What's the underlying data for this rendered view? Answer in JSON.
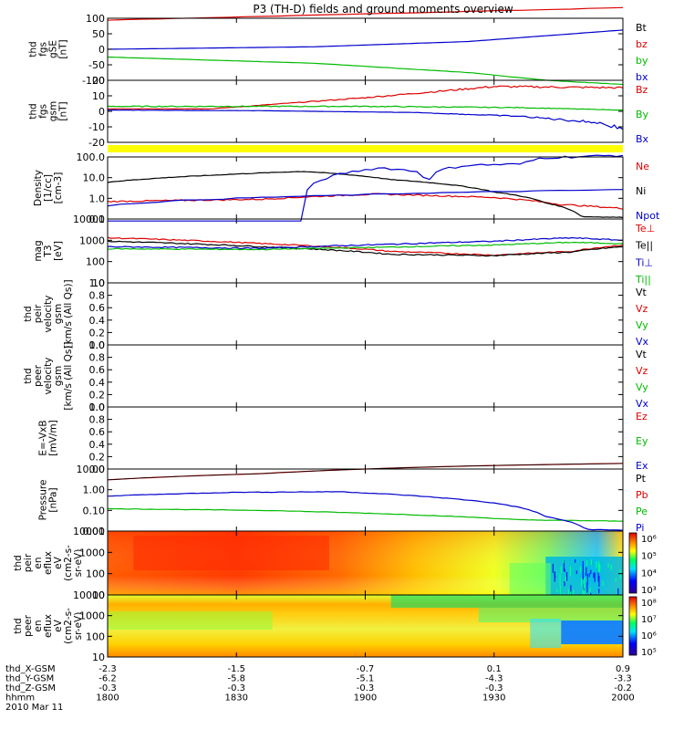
{
  "title": "P3 (TH-D) fields and ground moments overview",
  "panels": [
    {
      "id": "fgs_gse",
      "ylabels": [
        "thd",
        "fgs",
        "gSE",
        "[nT]"
      ],
      "ticks": [
        "100",
        "50",
        "0",
        "-50",
        "-100"
      ],
      "legend": [
        {
          "t": "Bt",
          "c": "#000000"
        },
        {
          "t": "bz",
          "c": "#dd0000"
        },
        {
          "t": "by",
          "c": "#00bb00"
        },
        {
          "t": "bx",
          "c": "#0000cc"
        }
      ]
    },
    {
      "id": "fgs_gsm",
      "ylabels": [
        "thd",
        "fgs",
        "gsm",
        "[nT]"
      ],
      "ticks": [
        "20",
        "10",
        "0",
        "-10",
        "-20"
      ],
      "legend": [
        {
          "t": "Bz",
          "c": "#dd0000"
        },
        {
          "t": "By",
          "c": "#00bb00"
        },
        {
          "t": "Bx",
          "c": "#0000cc"
        }
      ]
    },
    {
      "id": "density",
      "ylabels": [
        "Density",
        "[1/cc]",
        "[cm-3]"
      ],
      "ticks": [
        "100.0",
        "10.0",
        "1.0",
        "0.1"
      ],
      "legend": [
        {
          "t": "Ne",
          "c": "#dd0000"
        },
        {
          "t": "Ni",
          "c": "#000000"
        },
        {
          "t": "Npot",
          "c": "#0000cc"
        }
      ]
    },
    {
      "id": "temp",
      "ylabels": [
        "mag",
        "T3",
        "[eV]"
      ],
      "ticks": [
        "10000",
        "1000",
        "100",
        "10"
      ],
      "legend": [
        {
          "t": "Te⊥",
          "c": "#dd0000"
        },
        {
          "t": "Te||",
          "c": "#000000"
        },
        {
          "t": "Ti⊥",
          "c": "#0000cc"
        },
        {
          "t": "Ti||",
          "c": "#00bb00"
        }
      ]
    },
    {
      "id": "peir_vel",
      "ylabels": [
        "thd",
        "peir",
        "velocity",
        "gsm",
        "[km/s (All Qs)]"
      ],
      "ticks": [
        "1.0",
        "0.8",
        "0.6",
        "0.4",
        "0.2",
        "0.0"
      ],
      "legend": [
        {
          "t": "Vt",
          "c": "#000000"
        },
        {
          "t": "Vz",
          "c": "#dd0000"
        },
        {
          "t": "Vy",
          "c": "#00bb00"
        },
        {
          "t": "Vx",
          "c": "#0000cc"
        }
      ]
    },
    {
      "id": "peer_vel",
      "ylabels": [
        "thd",
        "peer",
        "velocity",
        "gsm",
        "[km/s (All Qs)]"
      ],
      "ticks": [
        "1.0",
        "0.8",
        "0.6",
        "0.4",
        "0.2",
        "0.0"
      ],
      "legend": [
        {
          "t": "Vt",
          "c": "#000000"
        },
        {
          "t": "Vz",
          "c": "#dd0000"
        },
        {
          "t": "Vy",
          "c": "#00bb00"
        },
        {
          "t": "Vx",
          "c": "#0000cc"
        }
      ]
    },
    {
      "id": "efield",
      "ylabels": [
        "E=-VxB",
        "[mV/m]"
      ],
      "ticks": [
        "1.0",
        "0.8",
        "0.6",
        "0.4",
        "0.2",
        "0.0"
      ],
      "legend": [
        {
          "t": "Ez",
          "c": "#dd0000"
        },
        {
          "t": "Ey",
          "c": "#00bb00"
        },
        {
          "t": "Ex",
          "c": "#0000cc"
        }
      ]
    },
    {
      "id": "pressure",
      "ylabels": [
        "Pressure",
        "[nPa]"
      ],
      "ticks": [
        "10.00",
        "1.00",
        "0.10",
        "0.01"
      ],
      "legend": [
        {
          "t": "Pt",
          "c": "#000000"
        },
        {
          "t": "Pb",
          "c": "#dd0000"
        },
        {
          "t": "Pe",
          "c": "#00bb00"
        },
        {
          "t": "Pi",
          "c": "#0000cc"
        }
      ]
    },
    {
      "id": "peir_spec",
      "ylabels": [
        "thd",
        "peir",
        "en",
        "eflux",
        "eV",
        "(cm2-s-",
        "sr-eV)"
      ],
      "ticks": [
        "10000",
        "1000",
        "100",
        "10"
      ],
      "cbar": [
        "10⁶",
        "10⁵",
        "10⁴",
        "10³"
      ]
    },
    {
      "id": "peer_spec",
      "ylabels": [
        "thd",
        "peer",
        "en",
        "eflux",
        "eV",
        "(cm2-s-",
        "sr-eV)"
      ],
      "ticks": [
        "10000",
        "1000",
        "100",
        "10"
      ],
      "cbar": [
        "10⁸",
        "10⁷",
        "10⁶",
        "10⁵"
      ]
    }
  ],
  "xaxis": {
    "rows": [
      {
        "label": "thd_X-GSM",
        "values": [
          "-2.3",
          "-1.5",
          "-0.7",
          "0.1",
          "0.9"
        ]
      },
      {
        "label": "thd_Y-GSM",
        "values": [
          "-6.2",
          "-5.8",
          "-5.1",
          "-4.3",
          "-3.3"
        ]
      },
      {
        "label": "thd_Z-GSM",
        "values": [
          "-0.3",
          "-0.3",
          "-0.3",
          "-0.3",
          "-0.2"
        ]
      },
      {
        "label": "hhmm",
        "values": [
          "1800",
          "1830",
          "1900",
          "1930",
          "2000"
        ]
      }
    ],
    "date": "2010 Mar 11"
  },
  "chart_data": [
    {
      "type": "line",
      "title": "P3 (TH-D) fields and ground moments overview",
      "ylabel": "thd fgs gSE [nT]",
      "ylim": [
        -100,
        100
      ],
      "x": [
        "1800",
        "1830",
        "1900",
        "1930",
        "2000"
      ],
      "series": [
        {
          "name": "Bt",
          "values": [
            null,
            null,
            null,
            null,
            null
          ]
        },
        {
          "name": "bz",
          "values": [
            95,
            null,
            null,
            null,
            null
          ]
        },
        {
          "name": "by",
          "values": [
            -30,
            -45,
            -70,
            -95,
            null
          ]
        },
        {
          "name": "bx",
          "values": [
            0,
            5,
            15,
            30,
            60
          ]
        }
      ]
    },
    {
      "type": "line",
      "ylabel": "thd fgs gsm [nT]",
      "ylim": [
        -25,
        25
      ],
      "x": [
        "1800",
        "1830",
        "1900",
        "1930",
        "2000"
      ],
      "series": [
        {
          "name": "Bz",
          "values": [
            2,
            5,
            12,
            19,
            18
          ]
        },
        {
          "name": "By",
          "values": [
            4,
            4,
            4,
            3,
            1
          ]
        },
        {
          "name": "Bx",
          "values": [
            0,
            0,
            -1,
            -3,
            -12
          ]
        }
      ]
    },
    {
      "type": "line",
      "ylabel": "Density [1/cc]",
      "scale": "log",
      "ylim": [
        0.1,
        100
      ],
      "x": [
        "1800",
        "1830",
        "1850",
        "1900",
        "1930",
        "2000"
      ],
      "series": [
        {
          "name": "Ne",
          "values": [
            0.7,
            0.9,
            1.0,
            1.5,
            1.0,
            0.35
          ]
        },
        {
          "name": "Ni",
          "values": [
            6,
            12,
            20,
            8,
            2,
            0.12
          ]
        },
        {
          "name": "Npot",
          "values": [
            null,
            null,
            null,
            40,
            50,
            null
          ]
        }
      ]
    },
    {
      "type": "line",
      "ylabel": "mag T3 [eV]",
      "scale": "log",
      "ylim": [
        10,
        10000
      ],
      "x": [
        "1800",
        "1830",
        "1900",
        "1930",
        "2000"
      ],
      "series": [
        {
          "name": "Te⊥",
          "values": [
            1300,
            800,
            300,
            220,
            600
          ]
        },
        {
          "name": "Te||",
          "values": [
            900,
            550,
            220,
            200,
            500
          ]
        },
        {
          "name": "Ti⊥",
          "values": [
            500,
            450,
            700,
            900,
            1200
          ]
        },
        {
          "name": "Ti||",
          "values": [
            400,
            380,
            500,
            600,
            900
          ]
        }
      ]
    },
    {
      "type": "line",
      "ylabel": "Pressure [nPa]",
      "scale": "log",
      "ylim": [
        0.01,
        10
      ],
      "x": [
        "1800",
        "1830",
        "1900",
        "1930",
        "2000"
      ],
      "series": [
        {
          "name": "Pt",
          "values": [
            3,
            6,
            12,
            null,
            null
          ]
        },
        {
          "name": "Pb",
          "values": [
            3,
            6,
            12,
            null,
            null
          ]
        },
        {
          "name": "Pe",
          "values": [
            0.12,
            0.1,
            0.07,
            0.035,
            0.03
          ]
        },
        {
          "name": "Pi",
          "values": [
            0.5,
            0.8,
            0.7,
            0.2,
            0.012
          ]
        }
      ]
    },
    {
      "type": "heatmap",
      "ylabel": "thd peir en eflux",
      "scale": "log",
      "ylim": [
        10,
        10000
      ],
      "x": [
        "1800",
        "1830",
        "1900",
        "1930",
        "2000"
      ],
      "colorbar": [
        "10³",
        "10⁴",
        "10⁵",
        "10⁶"
      ]
    },
    {
      "type": "heatmap",
      "ylabel": "thd peer en eflux",
      "scale": "log",
      "ylim": [
        10,
        10000
      ],
      "x": [
        "1800",
        "1830",
        "1900",
        "1930",
        "2000"
      ],
      "colorbar": [
        "10⁵",
        "10⁶",
        "10⁷",
        "10⁸"
      ]
    }
  ]
}
